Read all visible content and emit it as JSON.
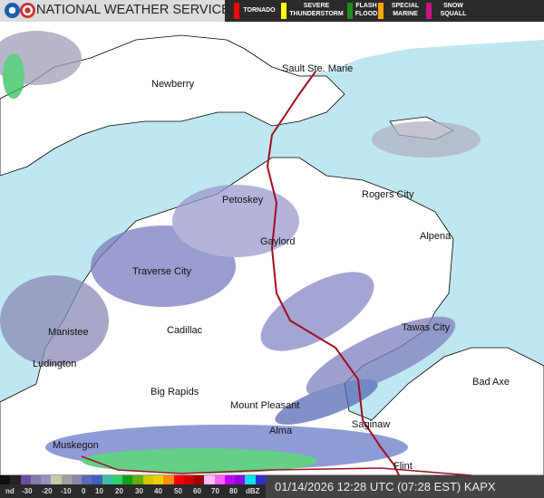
{
  "header": {
    "title": "NATIONAL WEATHER SERVICE",
    "logos": [
      "noaa-logo",
      "nws-logo"
    ]
  },
  "warnings": [
    {
      "label": "TORNADO",
      "color": "#ff0000"
    },
    {
      "label": "SEVERE THUNDERSTORM",
      "color": "#ffff00"
    },
    {
      "label": "FLASH FLOOD",
      "color": "#228b22"
    },
    {
      "label": "SPECIAL MARINE",
      "color": "#ffa500"
    },
    {
      "label": "SNOW SQUALL",
      "color": "#c71585"
    }
  ],
  "cities": [
    "Newberry",
    "Sault Ste. Marie",
    "Petoskey",
    "Rogers City",
    "Gaylord",
    "Alpena",
    "Traverse City",
    "Cadillac",
    "Manistee",
    "Tawas City",
    "Ludington",
    "Bad Axe",
    "Big Rapids",
    "Mount Pleasant",
    "Alma",
    "Saginaw",
    "Muskegon",
    "Flint"
  ],
  "legend": {
    "ticks": [
      "nd",
      "-30",
      "-20",
      "-10",
      "0",
      "10",
      "20",
      "30",
      "40",
      "50",
      "60",
      "70",
      "80",
      "dBZ"
    ],
    "colors": [
      "#111111",
      "#222222",
      "#6a4f9a",
      "#8878b0",
      "#9a92b8",
      "#c8c8a8",
      "#a0a0a0",
      "#8a8ab0",
      "#5a6ab8",
      "#4060c0",
      "#40c0a0",
      "#30d070",
      "#10a020",
      "#60b000",
      "#d0c800",
      "#f0d000",
      "#ff9000",
      "#ff0000",
      "#d00000",
      "#a00000",
      "#ffc0ff",
      "#ff60ff",
      "#c000ff",
      "#9000e0",
      "#00e0f0",
      "#3030d0"
    ]
  },
  "timestamp": "01/14/2026 12:28 UTC (07:28 EST)",
  "station": "KAPX",
  "colors": {
    "water": "#bfe7ef",
    "land": "#ffffff",
    "highway": "#a01020"
  }
}
